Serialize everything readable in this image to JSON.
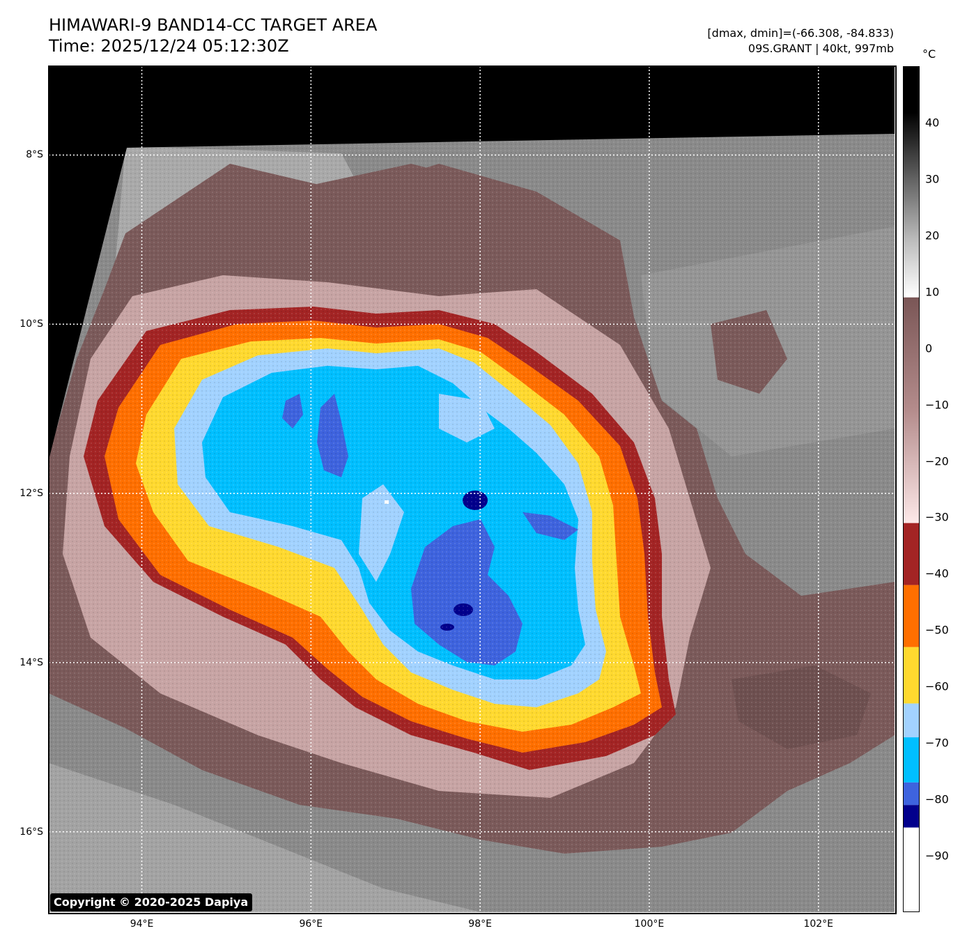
{
  "header": {
    "title_line1": "HIMAWARI-9 BAND14-CC TARGET AREA",
    "title_line2": "Time: 2025/12/24 05:12:30Z",
    "info_line1": "[dmax, dmin]=(-66.308, -84.833)",
    "info_line2": "09S.GRANT | 40kt, 997mb"
  },
  "map": {
    "lon_range": [
      92.9,
      102.9
    ],
    "lat_range": [
      -16.95,
      -6.95
    ],
    "lat_labels": [
      {
        "value": -8,
        "text": "8°S"
      },
      {
        "value": -10,
        "text": "10°S"
      },
      {
        "value": -12,
        "text": "12°S"
      },
      {
        "value": -14,
        "text": "14°S"
      },
      {
        "value": -16,
        "text": "16°S"
      }
    ],
    "lon_labels": [
      {
        "value": 94,
        "text": "94°E"
      },
      {
        "value": 96,
        "text": "96°E"
      },
      {
        "value": 98,
        "text": "98°E"
      },
      {
        "value": 100,
        "text": "100°E"
      },
      {
        "value": 102,
        "text": "102°E"
      }
    ],
    "copyright": "Copyright © 2020-2025 Dapiya",
    "storm_center": {
      "lon": 97.9,
      "lat": -12.1
    }
  },
  "colorbar": {
    "unit": "°C",
    "range": [
      -100,
      50
    ],
    "ticks": [
      {
        "value": 40,
        "text": "40"
      },
      {
        "value": 30,
        "text": "30"
      },
      {
        "value": 20,
        "text": "20"
      },
      {
        "value": 10,
        "text": "10"
      },
      {
        "value": 0,
        "text": "0"
      },
      {
        "value": -10,
        "text": "−10"
      },
      {
        "value": -20,
        "text": "−20"
      },
      {
        "value": -30,
        "text": "−30"
      },
      {
        "value": -40,
        "text": "−40"
      },
      {
        "value": -50,
        "text": "−50"
      },
      {
        "value": -60,
        "text": "−60"
      },
      {
        "value": -70,
        "text": "−70"
      },
      {
        "value": -80,
        "text": "−80"
      },
      {
        "value": -90,
        "text": "−90"
      }
    ],
    "bands": [
      {
        "from": 40,
        "to": 50,
        "color": "#000000"
      },
      {
        "from": 29,
        "to": 40,
        "color": "#111111"
      },
      {
        "from": 20,
        "to": 29,
        "color": "#555555"
      },
      {
        "from": 9,
        "to": 20,
        "color": "#eeeeee"
      },
      {
        "from": -31,
        "to": 9,
        "color": "#8c6363"
      },
      {
        "from": -42,
        "to": -31,
        "color": "#a32424"
      },
      {
        "from": -53,
        "to": -42,
        "color": "#ff6f00"
      },
      {
        "from": -63,
        "to": -53,
        "color": "#ffd92f"
      },
      {
        "from": -69,
        "to": -63,
        "color": "#a2d2ff"
      },
      {
        "from": -77,
        "to": -69,
        "color": "#00bfff"
      },
      {
        "from": -81,
        "to": -77,
        "color": "#3e63de"
      },
      {
        "from": -85,
        "to": -81,
        "color": "#02008c"
      },
      {
        "from": -100,
        "to": -85,
        "color": "#ffffff"
      }
    ]
  },
  "colors": {
    "space": "#000000",
    "background_gray": "#8a8a8a",
    "cloud_brown": "#7b5a5a",
    "cloud_pink": "#d9b9b9",
    "dark_red": "#a32424",
    "orange": "#ff6f00",
    "yellow": "#ffd92f",
    "light_blue": "#a2d2ff",
    "cyan": "#00bfff",
    "royal_blue": "#3e63de",
    "navy": "#02008c"
  }
}
